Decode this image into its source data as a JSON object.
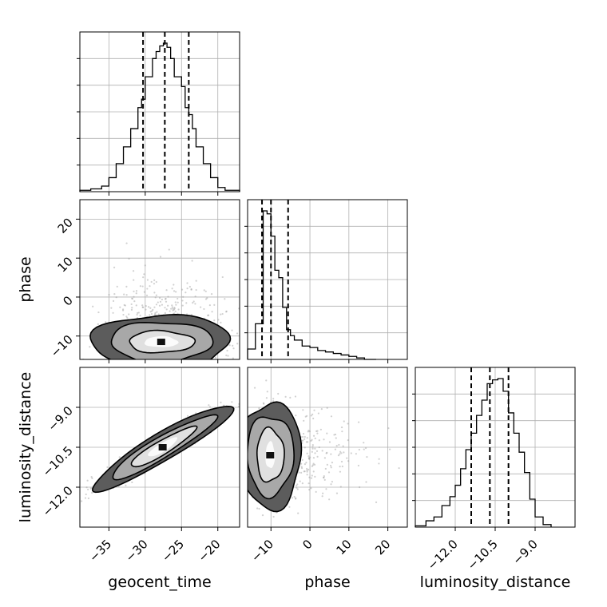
{
  "chart_data": {
    "type": "corner",
    "parameters": [
      "geocent_time",
      "phase",
      "luminosity_distance"
    ],
    "axis_labels": {
      "geocent_time": "geocent_time",
      "phase": "phase",
      "luminosity_distance": "luminosity_distance"
    },
    "ranges": {
      "geocent_time": [
        -39,
        -17
      ],
      "phase": [
        -16,
        25
      ],
      "luminosity_distance": [
        -13.5,
        -7.5
      ]
    },
    "ticks": {
      "geocent_time": [
        -35,
        -30,
        -25,
        -20
      ],
      "phase": [
        -10,
        0,
        10,
        20
      ],
      "luminosity_distance": [
        -12.0,
        -10.5,
        -9.0
      ]
    },
    "tick_labels": {
      "geocent_time": [
        "−35",
        "−30",
        "−25",
        "−20"
      ],
      "phase": [
        "−10",
        "0",
        "10",
        "20"
      ],
      "luminosity_distance": [
        "−12.0",
        "−10.5",
        "−9.0"
      ]
    },
    "quantiles": {
      "geocent_time": [
        -30.3,
        -27.3,
        -24.0
      ],
      "phase": [
        -12.3,
        -10.0,
        -5.6
      ],
      "luminosity_distance": [
        -11.4,
        -10.7,
        -10.0
      ]
    },
    "histograms": {
      "geocent_time": {
        "edges": [
          -39,
          -37.5,
          -36,
          -35,
          -34,
          -33,
          -32,
          -31,
          -30.5,
          -30,
          -29.5,
          -29,
          -28.5,
          -28,
          -27.5,
          -27,
          -26.5,
          -26,
          -25.5,
          -25,
          -24.5,
          -24,
          -23.5,
          -23,
          -22,
          -21,
          -20,
          -19,
          -17
        ],
        "counts": [
          0.01,
          0.02,
          0.04,
          0.1,
          0.2,
          0.32,
          0.45,
          0.6,
          0.66,
          0.82,
          0.82,
          0.95,
          1.0,
          1.04,
          1.06,
          1.03,
          0.95,
          0.82,
          0.82,
          0.75,
          0.6,
          0.55,
          0.45,
          0.32,
          0.2,
          0.1,
          0.03,
          0.01
        ]
      },
      "phase": {
        "edges": [
          -16,
          -14,
          -12,
          -11,
          -10,
          -9,
          -8,
          -7,
          -6,
          -5,
          -4,
          -2,
          0,
          2,
          4,
          6,
          8,
          10,
          12,
          14,
          17
        ],
        "counts": [
          0.07,
          0.24,
          1.0,
          0.98,
          0.83,
          0.6,
          0.55,
          0.35,
          0.2,
          0.16,
          0.13,
          0.09,
          0.08,
          0.06,
          0.05,
          0.04,
          0.03,
          0.02,
          0.01,
          0.0
        ]
      },
      "luminosity_distance": {
        "edges": [
          -13.5,
          -13.1,
          -12.8,
          -12.5,
          -12.2,
          -12.0,
          -11.8,
          -11.6,
          -11.4,
          -11.2,
          -11.0,
          -10.8,
          -10.6,
          -10.4,
          -10.2,
          -10.0,
          -9.8,
          -9.6,
          -9.4,
          -9.2,
          -9.0,
          -8.7,
          -8.4
        ],
        "counts": [
          0.01,
          0.05,
          0.08,
          0.17,
          0.24,
          0.33,
          0.46,
          0.61,
          0.74,
          0.88,
          1.0,
          1.13,
          1.16,
          1.17,
          1.07,
          0.9,
          0.74,
          0.59,
          0.43,
          0.22,
          0.08,
          0.02
        ]
      }
    },
    "contours": {
      "geocent_time__phase": {
        "center": [
          -27.8,
          -11.5
        ],
        "radii": [
          [
            2.3,
            1.4
          ],
          [
            4.5,
            2.8
          ],
          [
            7.0,
            5.2
          ],
          [
            9.5,
            7.0
          ]
        ]
      },
      "geocent_time__luminosity_distance": {
        "center": [
          -27.6,
          -10.5
        ],
        "rotation_slope": 0.155,
        "half_lengths": [
          2.0,
          4.5,
          7.2,
          9.6
        ],
        "half_widths": [
          0.18,
          0.3,
          0.45,
          0.6
        ]
      },
      "phase__luminosity_distance": {
        "center": [
          -10.2,
          -10.8
        ],
        "radii": [
          [
            1.2,
            0.5
          ],
          [
            3.5,
            1.0
          ],
          [
            6.0,
            1.5
          ],
          [
            8.0,
            2.0
          ]
        ]
      }
    },
    "grid": true
  }
}
